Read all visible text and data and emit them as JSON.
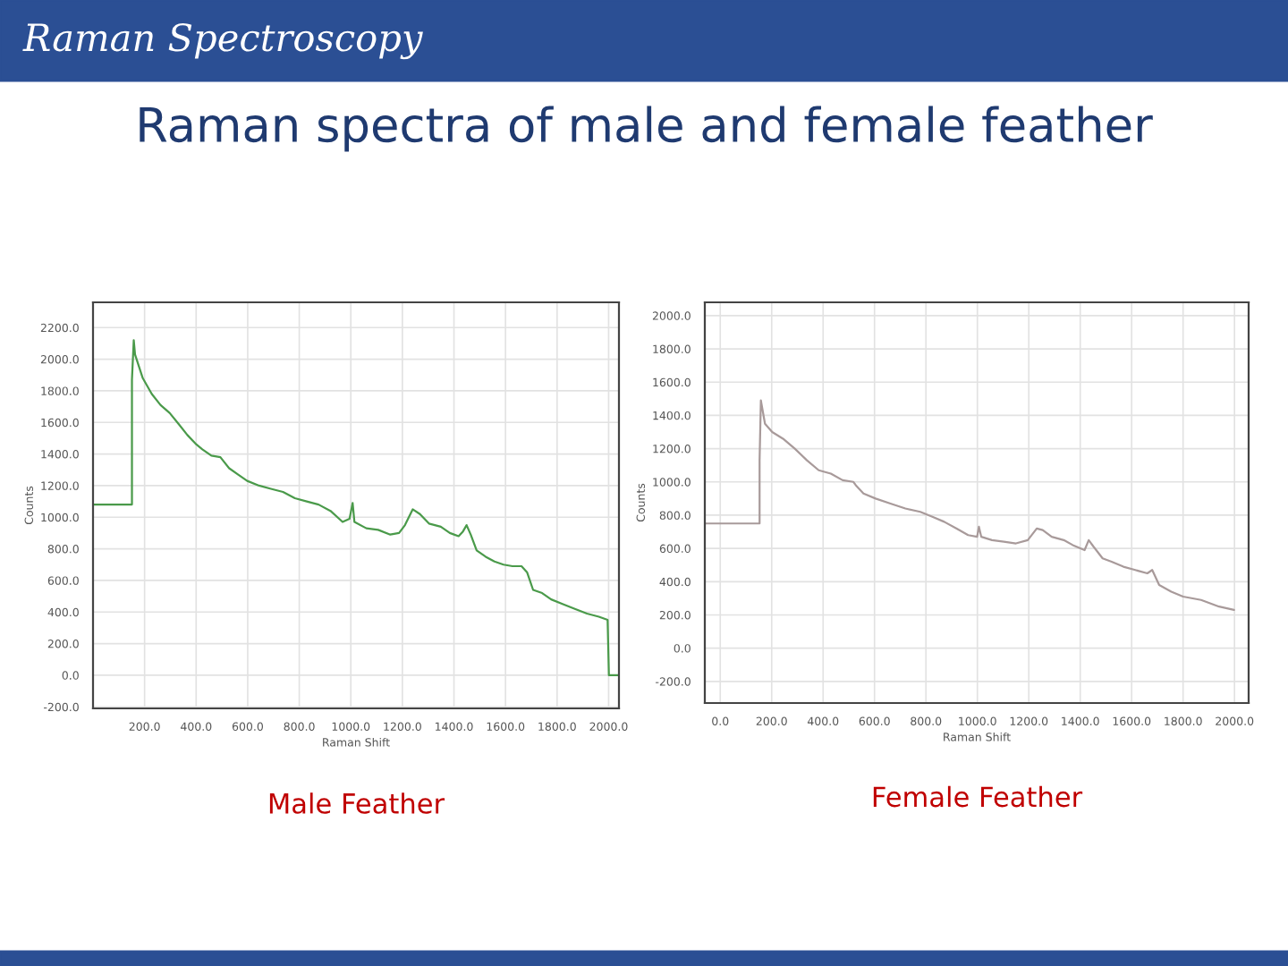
{
  "chart_data": [
    {
      "type": "line",
      "title": "Raman Spectroscopy",
      "subtitle": "Raman spectra of male and female feather",
      "xlabel": "Raman Shift",
      "ylabel": "Counts",
      "annotations": [
        "Male Feather"
      ],
      "x": [
        0,
        151,
        151,
        158,
        163,
        193,
        228,
        262,
        297,
        332,
        366,
        401,
        424,
        459,
        494,
        528,
        563,
        598,
        644,
        690,
        737,
        783,
        829,
        875,
        921,
        968,
        995,
        1007,
        1014,
        1060,
        1106,
        1153,
        1187,
        1210,
        1240,
        1268,
        1303,
        1349,
        1384,
        1418,
        1435,
        1449,
        1465,
        1488,
        1523,
        1557,
        1592,
        1627,
        1662,
        1684,
        1707,
        1742,
        1777,
        1823,
        1869,
        1916,
        1962,
        1996,
        2001,
        2040
      ],
      "series": [
        {
          "color": "#4a9a4a",
          "values": [
            1080,
            1080,
            1870,
            2120,
            2030,
            1880,
            1780,
            1710,
            1660,
            1590,
            1520,
            1460,
            1430,
            1390,
            1380,
            1310,
            1270,
            1230,
            1200,
            1180,
            1160,
            1120,
            1100,
            1080,
            1040,
            970,
            990,
            1090,
            970,
            930,
            920,
            890,
            900,
            950,
            1050,
            1020,
            960,
            940,
            900,
            880,
            910,
            950,
            890,
            790,
            750,
            720,
            700,
            690,
            690,
            650,
            540,
            520,
            480,
            450,
            420,
            390,
            370,
            350,
            0,
            0
          ]
        }
      ],
      "xlim": [
        0,
        2040
      ],
      "ylim": [
        -210,
        2360
      ],
      "xticks": [
        {
          "value": 200,
          "label": "200.0"
        },
        {
          "value": 400,
          "label": "400.0"
        },
        {
          "value": 600,
          "label": "600.0"
        },
        {
          "value": 800,
          "label": "800.0"
        },
        {
          "value": 1000,
          "label": "1000.0"
        },
        {
          "value": 1200,
          "label": "1200.0"
        },
        {
          "value": 1400,
          "label": "1400.0"
        },
        {
          "value": 1600,
          "label": "1600.0"
        },
        {
          "value": 1800,
          "label": "1800.0"
        },
        {
          "value": 2000,
          "label": "2000.0"
        }
      ],
      "yticks": [
        {
          "value": -200,
          "label": "-200.0"
        },
        {
          "value": 0,
          "label": "0.0"
        },
        {
          "value": 200,
          "label": "200.0"
        },
        {
          "value": 400,
          "label": "400.0"
        },
        {
          "value": 600,
          "label": "600.0"
        },
        {
          "value": 800,
          "label": "800.0"
        },
        {
          "value": 1000,
          "label": "1000.0"
        },
        {
          "value": 1200,
          "label": "1200.0"
        },
        {
          "value": 1400,
          "label": "1400.0"
        },
        {
          "value": 1600,
          "label": "1600.0"
        },
        {
          "value": 1800,
          "label": "1800.0"
        },
        {
          "value": 2000,
          "label": "2000.0"
        },
        {
          "value": 2200,
          "label": "2200.0"
        }
      ],
      "grid": true
    },
    {
      "type": "line",
      "xlabel": "Raman Shift",
      "ylabel": "Counts",
      "annotations": [
        "Female Feather"
      ],
      "x": [
        -60,
        153,
        153,
        158,
        174,
        202,
        244,
        290,
        337,
        383,
        430,
        476,
        518,
        527,
        557,
        604,
        662,
        720,
        778,
        825,
        871,
        918,
        964,
        999,
        1006,
        1015,
        1057,
        1103,
        1150,
        1196,
        1231,
        1254,
        1289,
        1336,
        1371,
        1417,
        1433,
        1452,
        1487,
        1522,
        1568,
        1614,
        1661,
        1680,
        1707,
        1754,
        1800,
        1870,
        1940,
        1998
      ],
      "series": [
        {
          "color": "#a89a9a",
          "values": [
            750,
            750,
            1130,
            1490,
            1350,
            1300,
            1260,
            1200,
            1130,
            1070,
            1050,
            1010,
            1000,
            980,
            930,
            900,
            870,
            840,
            820,
            790,
            760,
            720,
            680,
            670,
            730,
            670,
            650,
            640,
            630,
            650,
            720,
            710,
            670,
            650,
            620,
            590,
            650,
            610,
            540,
            520,
            490,
            470,
            450,
            470,
            380,
            340,
            310,
            290,
            250,
            230
          ]
        }
      ],
      "xlim": [
        -60,
        2055
      ],
      "ylim": [
        -330,
        2080
      ],
      "xticks": [
        {
          "value": 0,
          "label": "0.0"
        },
        {
          "value": 200,
          "label": "200.0"
        },
        {
          "value": 400,
          "label": "400.0"
        },
        {
          "value": 600,
          "label": "600.0"
        },
        {
          "value": 800,
          "label": "800.0"
        },
        {
          "value": 1000,
          "label": "1000.0"
        },
        {
          "value": 1200,
          "label": "1200.0"
        },
        {
          "value": 1400,
          "label": "1400.0"
        },
        {
          "value": 1600,
          "label": "1600.0"
        },
        {
          "value": 1800,
          "label": "1800.0"
        },
        {
          "value": 2000,
          "label": "2000.0"
        }
      ],
      "yticks": [
        {
          "value": -200,
          "label": "-200.0"
        },
        {
          "value": 0,
          "label": "0.0"
        },
        {
          "value": 200,
          "label": "200.0"
        },
        {
          "value": 400,
          "label": "400.0"
        },
        {
          "value": 600,
          "label": "600.0"
        },
        {
          "value": 800,
          "label": "800.0"
        },
        {
          "value": 1000,
          "label": "1000.0"
        },
        {
          "value": 1200,
          "label": "1200.0"
        },
        {
          "value": 1400,
          "label": "1400.0"
        },
        {
          "value": 1600,
          "label": "1600.0"
        },
        {
          "value": 1800,
          "label": "1800.0"
        },
        {
          "value": 2000,
          "label": "2000.0"
        }
      ],
      "grid": true
    }
  ]
}
